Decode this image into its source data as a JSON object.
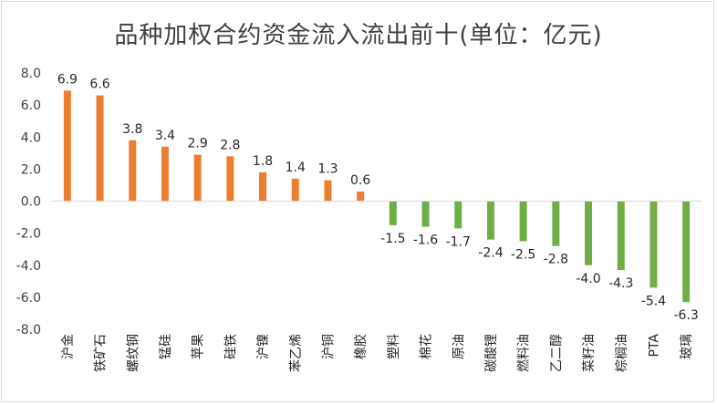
{
  "chart_data": {
    "type": "bar",
    "title": "品种加权合约资金流入流出前十(单位：亿元)",
    "categories": [
      "沪金",
      "铁矿石",
      "螺纹钢",
      "锰硅",
      "苹果",
      "硅铁",
      "沪镍",
      "苯乙烯",
      "沪铜",
      "橡胶",
      "塑料",
      "棉花",
      "原油",
      "碳酸锂",
      "燃料油",
      "乙二醇",
      "菜籽油",
      "棕榈油",
      "PTA",
      "玻璃"
    ],
    "values": [
      6.9,
      6.6,
      3.8,
      3.4,
      2.9,
      2.8,
      1.8,
      1.4,
      1.3,
      0.6,
      -1.5,
      -1.6,
      -1.7,
      -2.4,
      -2.5,
      -2.8,
      -4.0,
      -4.3,
      -5.4,
      -6.3
    ],
    "value_labels": [
      "6.9",
      "6.6",
      "3.8",
      "3.4",
      "2.9",
      "2.8",
      "1.8",
      "1.4",
      "1.3",
      "0.6",
      "-1.5",
      "-1.6",
      "-1.7",
      "-2.4",
      "-2.5",
      "-2.8",
      "-4.0",
      "-4.3",
      "-5.4",
      "-6.3"
    ],
    "ylim": [
      -8,
      8
    ],
    "yticks": [
      "-8.0",
      "-6.0",
      "-4.0",
      "-2.0",
      "0.0",
      "2.0",
      "4.0",
      "6.0",
      "8.0"
    ],
    "grid": false,
    "colors": {
      "positive": "#ED7D31",
      "negative": "#70AD47",
      "axis": "#d9d9d9"
    }
  }
}
